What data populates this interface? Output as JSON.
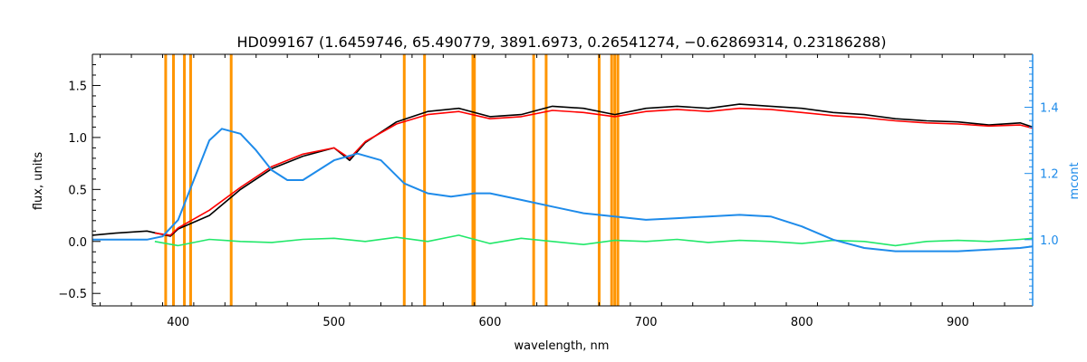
{
  "chart_data": {
    "type": "line",
    "title": "HD099167   (1.6459746, 65.490779, 3891.6973, 0.26541274, −0.62869314, 0.23186288)",
    "xlabel": "wavelength, nm",
    "ylabel": "flux, units",
    "y2label": "mcont",
    "xlim": [
      345,
      948
    ],
    "ylim": [
      -0.62,
      1.8
    ],
    "y2lim": [
      0.8,
      1.56
    ],
    "xticks": [
      "400",
      "500",
      "600",
      "700",
      "800",
      "900"
    ],
    "yticks": [
      "−0.5",
      "0.0",
      "0.5",
      "1.0",
      "1.5"
    ],
    "y2ticks": [
      "1.0",
      "1.2",
      "1.4"
    ],
    "grid": false,
    "masked_wavelengths_nm": [
      392,
      397,
      404,
      408,
      434,
      545,
      558,
      589,
      590,
      628,
      636,
      670,
      678,
      680,
      682
    ],
    "series": [
      {
        "role": "observed spectrum",
        "color": "#000000",
        "x": [
          345,
          360,
          380,
          395,
          400,
          420,
          440,
          460,
          480,
          500,
          510,
          520,
          540,
          560,
          580,
          600,
          620,
          640,
          660,
          680,
          700,
          720,
          740,
          760,
          780,
          800,
          820,
          840,
          860,
          880,
          900,
          920,
          940,
          948
        ],
        "y": [
          0.06,
          0.08,
          0.1,
          0.05,
          0.12,
          0.25,
          0.5,
          0.7,
          0.82,
          0.9,
          0.78,
          0.95,
          1.15,
          1.25,
          1.28,
          1.2,
          1.22,
          1.3,
          1.28,
          1.22,
          1.28,
          1.3,
          1.28,
          1.32,
          1.3,
          1.28,
          1.24,
          1.22,
          1.18,
          1.16,
          1.15,
          1.12,
          1.14,
          1.1
        ]
      },
      {
        "role": "model spectrum",
        "color": "#ff0000",
        "x": [
          385,
          395,
          400,
          420,
          440,
          460,
          480,
          500,
          510,
          520,
          540,
          560,
          580,
          600,
          620,
          640,
          660,
          680,
          700,
          720,
          740,
          760,
          780,
          800,
          820,
          840,
          860,
          880,
          900,
          920,
          940,
          948
        ],
        "y": [
          0.08,
          0.06,
          0.13,
          0.3,
          0.52,
          0.72,
          0.84,
          0.9,
          0.8,
          0.96,
          1.13,
          1.22,
          1.25,
          1.18,
          1.2,
          1.26,
          1.24,
          1.2,
          1.25,
          1.27,
          1.25,
          1.28,
          1.27,
          1.24,
          1.21,
          1.19,
          1.16,
          1.14,
          1.13,
          1.11,
          1.12,
          1.09
        ]
      },
      {
        "role": "residuals",
        "color": "#22e86a",
        "x": [
          385,
          400,
          420,
          440,
          460,
          480,
          500,
          520,
          540,
          560,
          580,
          600,
          620,
          640,
          660,
          680,
          700,
          720,
          740,
          760,
          780,
          800,
          820,
          840,
          860,
          880,
          900,
          920,
          940,
          948
        ],
        "y": [
          0.0,
          -0.04,
          0.02,
          0.0,
          -0.01,
          0.02,
          0.03,
          0.0,
          0.04,
          0.0,
          0.06,
          -0.02,
          0.03,
          0.0,
          -0.03,
          0.01,
          0.0,
          0.02,
          -0.01,
          0.01,
          0.0,
          -0.02,
          0.01,
          0.0,
          -0.04,
          0.0,
          0.01,
          0.0,
          0.02,
          0.03
        ]
      },
      {
        "role": "continuum multiplier",
        "axis": "right",
        "color": "#1e8bea",
        "x": [
          345,
          380,
          390,
          400,
          410,
          420,
          428,
          440,
          450,
          460,
          470,
          480,
          500,
          515,
          530,
          545,
          560,
          575,
          590,
          600,
          620,
          640,
          660,
          680,
          700,
          720,
          740,
          760,
          780,
          800,
          820,
          840,
          860,
          880,
          900,
          920,
          940,
          948
        ],
        "y": [
          1.0,
          1.0,
          1.01,
          1.06,
          1.18,
          1.3,
          1.335,
          1.32,
          1.27,
          1.21,
          1.18,
          1.18,
          1.24,
          1.26,
          1.24,
          1.17,
          1.14,
          1.13,
          1.14,
          1.14,
          1.12,
          1.1,
          1.08,
          1.07,
          1.06,
          1.065,
          1.07,
          1.075,
          1.07,
          1.04,
          1.0,
          0.975,
          0.965,
          0.965,
          0.965,
          0.97,
          0.975,
          0.98
        ]
      }
    ]
  },
  "colors": {
    "mask": "#ff9500",
    "axes": "#000000",
    "right_axis": "#1e8bea"
  }
}
